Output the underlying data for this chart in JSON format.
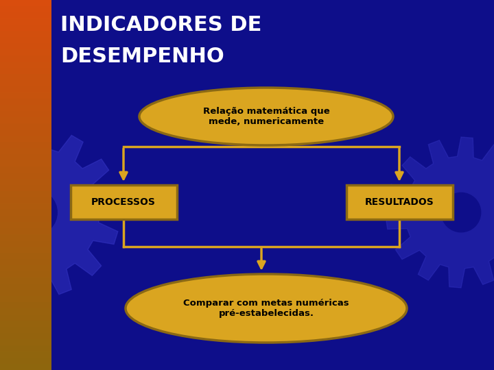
{
  "title_line1": "INDICADORES DE",
  "title_line2": "DESEMPENHO",
  "title_color": "#FFFFFF",
  "title_fontsize": 22,
  "bg_color": "#0e0e8a",
  "gold_fill": "#DAA520",
  "gold_edge": "#8B6914",
  "top_ellipse_text": "Relação matemática que\nmede, numericamente",
  "left_box_text": "PROCESSOS",
  "right_box_text": "RESULTADOS",
  "bottom_ellipse_text": "Comparar com metas numéricas\npré-estabelecidas.",
  "arrow_color": "#DAA520",
  "line_color": "#DAA520",
  "line_lw": 2.5,
  "gear_color": "#2a2aaa",
  "strip_color_top": "#cc4400",
  "strip_color_bot": "#885500",
  "text_dark": "#000000"
}
